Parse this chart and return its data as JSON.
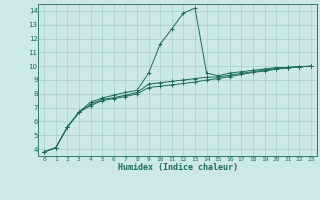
{
  "xlabel": "Humidex (Indice chaleur)",
  "background_color": "#cce8e8",
  "line_color": "#1a6b5a",
  "grid_color": "#aacccc",
  "xlim": [
    -0.5,
    23.5
  ],
  "ylim": [
    3.5,
    14.5
  ],
  "xticks": [
    0,
    1,
    2,
    3,
    4,
    5,
    6,
    7,
    8,
    9,
    10,
    11,
    12,
    13,
    14,
    15,
    16,
    17,
    18,
    19,
    20,
    21,
    22,
    23
  ],
  "yticks": [
    4,
    5,
    6,
    7,
    8,
    9,
    10,
    11,
    12,
    13,
    14
  ],
  "series": [
    {
      "x": [
        0,
        1,
        2,
        3,
        4,
        5,
        6,
        7,
        8,
        9,
        10,
        11,
        12,
        13,
        14,
        15,
        16,
        17,
        18,
        19,
        20,
        21,
        22,
        23
      ],
      "y": [
        3.8,
        4.1,
        5.6,
        6.7,
        7.4,
        7.7,
        7.9,
        8.1,
        8.25,
        9.5,
        11.6,
        12.7,
        13.85,
        14.2,
        9.5,
        9.3,
        9.5,
        9.6,
        9.7,
        9.8,
        9.9,
        9.9,
        9.95,
        10.0
      ]
    },
    {
      "x": [
        0,
        1,
        2,
        3,
        4,
        5,
        6,
        7,
        8,
        9,
        10,
        11,
        12,
        13,
        14,
        15,
        16,
        17,
        18,
        19,
        20,
        21,
        22,
        23
      ],
      "y": [
        3.8,
        4.1,
        5.6,
        6.65,
        7.15,
        7.5,
        7.65,
        7.8,
        8.0,
        8.45,
        8.55,
        8.65,
        8.75,
        8.85,
        9.0,
        9.1,
        9.25,
        9.4,
        9.55,
        9.65,
        9.78,
        9.88,
        9.95,
        10.0
      ]
    },
    {
      "x": [
        0,
        1,
        2,
        3,
        4,
        5,
        6,
        7,
        8,
        9,
        10,
        11,
        12,
        13,
        14,
        15,
        16,
        17,
        18,
        19,
        20,
        21,
        22,
        23
      ],
      "y": [
        3.8,
        4.1,
        5.6,
        6.65,
        7.25,
        7.6,
        7.72,
        7.9,
        8.1,
        8.7,
        8.8,
        8.9,
        9.0,
        9.1,
        9.2,
        9.22,
        9.35,
        9.48,
        9.6,
        9.72,
        9.82,
        9.92,
        9.97,
        10.0
      ]
    }
  ]
}
